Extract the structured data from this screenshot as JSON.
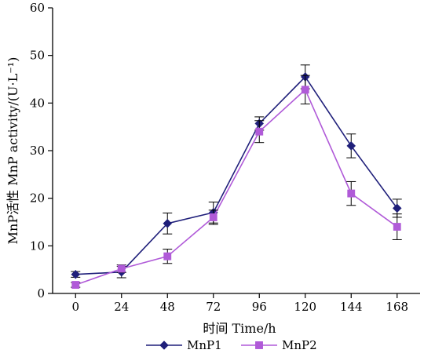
{
  "chart_data": {
    "type": "line",
    "xlabel": "时间 Time/h",
    "ylabel": "MnP活性 MnP activity/(U·L⁻¹)",
    "x": [
      0,
      24,
      48,
      72,
      96,
      120,
      144,
      168
    ],
    "xlim": [
      -12,
      180
    ],
    "ylim": [
      0,
      60
    ],
    "yticks": [
      0,
      10,
      20,
      30,
      40,
      50,
      60
    ],
    "grid": false,
    "legend": "bottom",
    "series": [
      {
        "name": "MnP1",
        "marker": "diamond",
        "color": "#1f1f7a",
        "values": [
          4.0,
          4.5,
          14.7,
          17.0,
          35.7,
          45.5,
          31.0,
          17.9
        ],
        "errors": [
          0.6,
          1.2,
          2.2,
          2.2,
          1.4,
          2.5,
          2.5,
          1.9
        ]
      },
      {
        "name": "MnP2",
        "marker": "square",
        "color": "#b05ad8",
        "values": [
          1.8,
          5.2,
          7.8,
          16.0,
          34.0,
          42.8,
          21.0,
          14.0
        ],
        "errors": [
          0.5,
          0.8,
          1.5,
          1.5,
          2.3,
          3.0,
          2.5,
          2.7
        ]
      }
    ]
  }
}
